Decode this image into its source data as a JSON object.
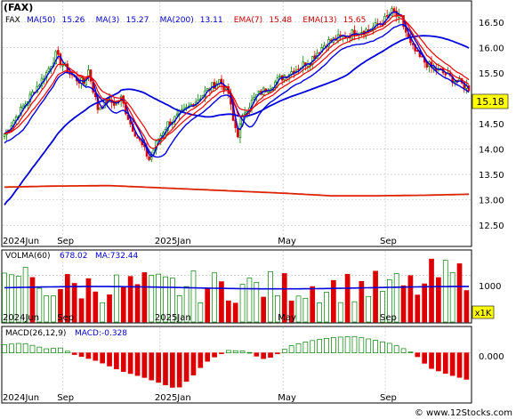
{
  "chart_data": [
    {
      "type": "candlestick",
      "title": "(FAX)",
      "symbol_label": "FAX",
      "indicators": [
        {
          "name": "MA(50)",
          "value": "15.26",
          "color": "#0000cc"
        },
        {
          "name": "MA(3)",
          "value": "15.27",
          "color": "#0000cc"
        },
        {
          "name": "MA(200)",
          "value": "13.11",
          "color": "#0000cc"
        },
        {
          "name": "EMA(7)",
          "value": "15.48",
          "color": "#cc0000"
        },
        {
          "name": "EMA(13)",
          "value": "15.65",
          "color": "#cc0000"
        }
      ],
      "last_price": "15.18",
      "ylim": [
        12.1,
        16.9
      ],
      "y_ticks": [
        "16.50",
        "16.00",
        "15.50",
        "15.00",
        "14.50",
        "14.00",
        "13.50",
        "13.00",
        "12.50"
      ],
      "x_labels": [
        "2024Jun",
        "Sep",
        "2025Jan",
        "May",
        "Sep"
      ],
      "grid": true,
      "colors": {
        "up": "#008000",
        "down": "#dd0000",
        "ma": "#0000dd",
        "ema": "#ee0000",
        "label_bg": "#ffff00"
      },
      "ma200_anchors": [
        [
          0,
          13.25
        ],
        [
          20,
          13.27
        ],
        [
          45,
          13.28
        ],
        [
          70,
          13.23
        ],
        [
          95,
          13.18
        ],
        [
          120,
          13.13
        ],
        [
          140,
          13.08
        ],
        [
          160,
          13.08
        ],
        [
          180,
          13.09
        ],
        [
          199,
          13.11
        ]
      ],
      "candle_count": 200
    },
    {
      "type": "bar",
      "title": "VOLMA(60)",
      "volma_value": "678.02",
      "ma_label": "MA:732.44",
      "y_ticks": [
        "1000"
      ],
      "unit_label": "x1K",
      "ylim": [
        0,
        1500
      ],
      "ma_level": 732.44
    },
    {
      "type": "bar",
      "title": "MACD(26,12,9)",
      "macd_label": "MACD:-0.328",
      "y_ticks": [
        "0.000"
      ],
      "ylim": [
        -0.6,
        0.3
      ],
      "anchors": [
        [
          0,
          0.1
        ],
        [
          8,
          0.12
        ],
        [
          18,
          0.05
        ],
        [
          24,
          0.06
        ],
        [
          30,
          -0.02
        ],
        [
          40,
          -0.1
        ],
        [
          50,
          -0.22
        ],
        [
          60,
          -0.3
        ],
        [
          68,
          -0.38
        ],
        [
          74,
          -0.44
        ],
        [
          80,
          -0.3
        ],
        [
          86,
          -0.12
        ],
        [
          90,
          -0.05
        ],
        [
          96,
          0.03
        ],
        [
          104,
          0.02
        ],
        [
          108,
          -0.04
        ],
        [
          112,
          -0.08
        ],
        [
          116,
          -0.03
        ],
        [
          122,
          0.08
        ],
        [
          130,
          0.14
        ],
        [
          136,
          0.17
        ],
        [
          142,
          0.19
        ],
        [
          150,
          0.2
        ],
        [
          158,
          0.16
        ],
        [
          166,
          0.11
        ],
        [
          172,
          0.04
        ],
        [
          176,
          -0.02
        ],
        [
          182,
          -0.18
        ],
        [
          190,
          -0.26
        ],
        [
          199,
          -0.33
        ]
      ]
    }
  ],
  "watermark": "© www.12Stocks.com"
}
